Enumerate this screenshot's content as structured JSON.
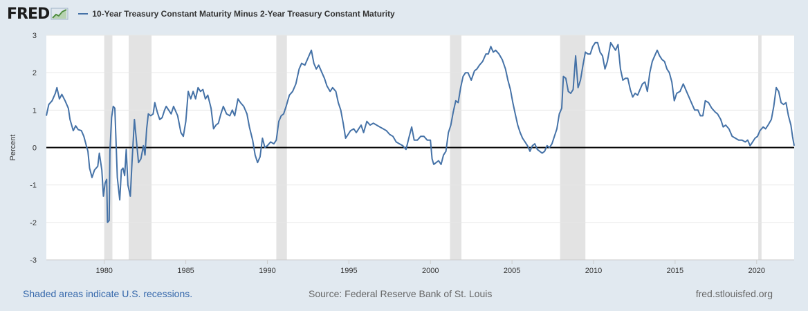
{
  "header": {
    "logo_text": "FRED",
    "logo_icon": "trend-chart-icon"
  },
  "colors": {
    "background": "#e1e9f0",
    "series": "#4572a7",
    "recession": "#e3e3e3",
    "zero_line": "#000000"
  },
  "footer": {
    "recessions_note": "Shaded areas indicate U.S. recessions.",
    "source": "Source: Federal Reserve Bank of St. Louis",
    "site": "fred.stlouisfed.org"
  },
  "chart_data": {
    "type": "line",
    "ylabel": "Percent",
    "xlim": [
      1976.45,
      2022.3
    ],
    "ylim": [
      -3,
      3
    ],
    "yticks": [
      3,
      2,
      1,
      0,
      -1,
      -2,
      -3
    ],
    "xticks": [
      1980,
      1985,
      1990,
      1995,
      2000,
      2005,
      2010,
      2015,
      2020
    ],
    "grid": true,
    "legend_position": "top-left",
    "recessions": [
      [
        1980.0,
        1980.5
      ],
      [
        1981.5,
        1982.9
      ],
      [
        1990.55,
        1991.2
      ],
      [
        2001.2,
        2001.9
      ],
      [
        2007.95,
        2009.5
      ],
      [
        2020.1,
        2020.3
      ]
    ],
    "series": [
      {
        "name": "10-Year Treasury Constant Maturity Minus 2-Year Treasury Constant Maturity",
        "points": [
          [
            1976.45,
            0.85
          ],
          [
            1976.6,
            1.15
          ],
          [
            1976.8,
            1.25
          ],
          [
            1977.0,
            1.45
          ],
          [
            1977.1,
            1.6
          ],
          [
            1977.25,
            1.3
          ],
          [
            1977.4,
            1.42
          ],
          [
            1977.6,
            1.25
          ],
          [
            1977.8,
            1.05
          ],
          [
            1977.9,
            0.75
          ],
          [
            1978.1,
            0.45
          ],
          [
            1978.25,
            0.58
          ],
          [
            1978.4,
            0.48
          ],
          [
            1978.6,
            0.45
          ],
          [
            1978.75,
            0.3
          ],
          [
            1978.9,
            0.05
          ],
          [
            1979.0,
            -0.1
          ],
          [
            1979.1,
            -0.55
          ],
          [
            1979.25,
            -0.8
          ],
          [
            1979.4,
            -0.6
          ],
          [
            1979.6,
            -0.5
          ],
          [
            1979.7,
            -0.15
          ],
          [
            1979.85,
            -0.6
          ],
          [
            1979.95,
            -1.3
          ],
          [
            1980.05,
            -0.95
          ],
          [
            1980.15,
            -0.85
          ],
          [
            1980.2,
            -2.0
          ],
          [
            1980.3,
            -1.95
          ],
          [
            1980.35,
            -0.1
          ],
          [
            1980.45,
            0.8
          ],
          [
            1980.55,
            1.1
          ],
          [
            1980.65,
            1.05
          ],
          [
            1980.8,
            -0.8
          ],
          [
            1980.95,
            -1.4
          ],
          [
            1981.05,
            -0.6
          ],
          [
            1981.15,
            -0.55
          ],
          [
            1981.25,
            -0.75
          ],
          [
            1981.35,
            -0.05
          ],
          [
            1981.45,
            -1.0
          ],
          [
            1981.6,
            -1.3
          ],
          [
            1981.7,
            -0.4
          ],
          [
            1981.85,
            0.75
          ],
          [
            1982.0,
            0.05
          ],
          [
            1982.1,
            -0.4
          ],
          [
            1982.25,
            -0.3
          ],
          [
            1982.4,
            0.05
          ],
          [
            1982.5,
            -0.2
          ],
          [
            1982.6,
            0.5
          ],
          [
            1982.7,
            0.9
          ],
          [
            1982.85,
            0.85
          ],
          [
            1983.0,
            0.9
          ],
          [
            1983.1,
            1.2
          ],
          [
            1983.25,
            0.95
          ],
          [
            1983.4,
            0.75
          ],
          [
            1983.55,
            0.8
          ],
          [
            1983.7,
            1.0
          ],
          [
            1983.8,
            1.1
          ],
          [
            1983.95,
            1.0
          ],
          [
            1984.1,
            0.9
          ],
          [
            1984.25,
            1.1
          ],
          [
            1984.5,
            0.85
          ],
          [
            1984.7,
            0.4
          ],
          [
            1984.85,
            0.3
          ],
          [
            1985.0,
            0.7
          ],
          [
            1985.15,
            1.5
          ],
          [
            1985.3,
            1.3
          ],
          [
            1985.45,
            1.5
          ],
          [
            1985.6,
            1.3
          ],
          [
            1985.75,
            1.6
          ],
          [
            1985.9,
            1.5
          ],
          [
            1986.05,
            1.55
          ],
          [
            1986.2,
            1.3
          ],
          [
            1986.35,
            1.4
          ],
          [
            1986.55,
            1.05
          ],
          [
            1986.7,
            0.5
          ],
          [
            1986.85,
            0.6
          ],
          [
            1987.0,
            0.65
          ],
          [
            1987.15,
            0.9
          ],
          [
            1987.3,
            1.1
          ],
          [
            1987.5,
            0.9
          ],
          [
            1987.7,
            0.85
          ],
          [
            1987.85,
            1.0
          ],
          [
            1988.0,
            0.85
          ],
          [
            1988.2,
            1.3
          ],
          [
            1988.35,
            1.2
          ],
          [
            1988.55,
            1.1
          ],
          [
            1988.75,
            0.9
          ],
          [
            1988.9,
            0.55
          ],
          [
            1989.1,
            0.2
          ],
          [
            1989.25,
            -0.2
          ],
          [
            1989.4,
            -0.4
          ],
          [
            1989.55,
            -0.25
          ],
          [
            1989.7,
            0.25
          ],
          [
            1989.85,
            0.0
          ],
          [
            1990.0,
            0.05
          ],
          [
            1990.2,
            0.15
          ],
          [
            1990.4,
            0.1
          ],
          [
            1990.55,
            0.2
          ],
          [
            1990.7,
            0.7
          ],
          [
            1990.85,
            0.85
          ],
          [
            1991.0,
            0.9
          ],
          [
            1991.15,
            1.1
          ],
          [
            1991.35,
            1.4
          ],
          [
            1991.55,
            1.5
          ],
          [
            1991.75,
            1.7
          ],
          [
            1991.95,
            2.1
          ],
          [
            1992.1,
            2.25
          ],
          [
            1992.3,
            2.2
          ],
          [
            1992.5,
            2.4
          ],
          [
            1992.7,
            2.6
          ],
          [
            1992.85,
            2.25
          ],
          [
            1993.0,
            2.1
          ],
          [
            1993.15,
            2.2
          ],
          [
            1993.35,
            2.0
          ],
          [
            1993.5,
            1.85
          ],
          [
            1993.65,
            1.65
          ],
          [
            1993.85,
            1.5
          ],
          [
            1994.0,
            1.6
          ],
          [
            1994.2,
            1.5
          ],
          [
            1994.35,
            1.2
          ],
          [
            1994.5,
            1.0
          ],
          [
            1994.65,
            0.65
          ],
          [
            1994.8,
            0.25
          ],
          [
            1994.95,
            0.35
          ],
          [
            1995.1,
            0.45
          ],
          [
            1995.3,
            0.5
          ],
          [
            1995.45,
            0.4
          ],
          [
            1995.6,
            0.5
          ],
          [
            1995.75,
            0.6
          ],
          [
            1995.9,
            0.4
          ],
          [
            1996.1,
            0.7
          ],
          [
            1996.3,
            0.6
          ],
          [
            1996.5,
            0.65
          ],
          [
            1996.7,
            0.6
          ],
          [
            1996.9,
            0.55
          ],
          [
            1997.1,
            0.5
          ],
          [
            1997.3,
            0.45
          ],
          [
            1997.5,
            0.35
          ],
          [
            1997.7,
            0.3
          ],
          [
            1997.9,
            0.15
          ],
          [
            1998.1,
            0.1
          ],
          [
            1998.3,
            0.05
          ],
          [
            1998.5,
            -0.05
          ],
          [
            1998.7,
            0.3
          ],
          [
            1998.85,
            0.55
          ],
          [
            1999.0,
            0.2
          ],
          [
            1999.2,
            0.2
          ],
          [
            1999.4,
            0.3
          ],
          [
            1999.6,
            0.3
          ],
          [
            1999.8,
            0.2
          ],
          [
            2000.0,
            0.2
          ],
          [
            2000.1,
            -0.3
          ],
          [
            2000.2,
            -0.45
          ],
          [
            2000.35,
            -0.4
          ],
          [
            2000.5,
            -0.35
          ],
          [
            2000.65,
            -0.45
          ],
          [
            2000.8,
            -0.2
          ],
          [
            2000.95,
            -0.1
          ],
          [
            2001.1,
            0.4
          ],
          [
            2001.25,
            0.6
          ],
          [
            2001.4,
            0.95
          ],
          [
            2001.55,
            1.25
          ],
          [
            2001.7,
            1.2
          ],
          [
            2001.85,
            1.6
          ],
          [
            2002.0,
            1.9
          ],
          [
            2002.15,
            2.0
          ],
          [
            2002.3,
            2.0
          ],
          [
            2002.5,
            1.8
          ],
          [
            2002.7,
            2.05
          ],
          [
            2002.85,
            2.1
          ],
          [
            2003.0,
            2.2
          ],
          [
            2003.2,
            2.3
          ],
          [
            2003.4,
            2.5
          ],
          [
            2003.55,
            2.5
          ],
          [
            2003.7,
            2.7
          ],
          [
            2003.85,
            2.55
          ],
          [
            2004.0,
            2.6
          ],
          [
            2004.2,
            2.5
          ],
          [
            2004.4,
            2.35
          ],
          [
            2004.6,
            2.1
          ],
          [
            2004.75,
            1.8
          ],
          [
            2004.9,
            1.55
          ],
          [
            2005.05,
            1.2
          ],
          [
            2005.2,
            0.9
          ],
          [
            2005.35,
            0.6
          ],
          [
            2005.5,
            0.4
          ],
          [
            2005.65,
            0.25
          ],
          [
            2005.8,
            0.15
          ],
          [
            2005.95,
            0.05
          ],
          [
            2006.1,
            -0.1
          ],
          [
            2006.25,
            0.05
          ],
          [
            2006.4,
            0.1
          ],
          [
            2006.55,
            -0.05
          ],
          [
            2006.7,
            -0.1
          ],
          [
            2006.85,
            -0.15
          ],
          [
            2007.0,
            -0.1
          ],
          [
            2007.15,
            0.05
          ],
          [
            2007.3,
            0.0
          ],
          [
            2007.45,
            0.1
          ],
          [
            2007.6,
            0.3
          ],
          [
            2007.75,
            0.5
          ],
          [
            2007.9,
            0.9
          ],
          [
            2008.05,
            1.05
          ],
          [
            2008.15,
            1.9
          ],
          [
            2008.3,
            1.85
          ],
          [
            2008.45,
            1.5
          ],
          [
            2008.6,
            1.45
          ],
          [
            2008.75,
            1.55
          ],
          [
            2008.9,
            2.45
          ],
          [
            2009.05,
            1.6
          ],
          [
            2009.2,
            1.8
          ],
          [
            2009.35,
            2.2
          ],
          [
            2009.5,
            2.55
          ],
          [
            2009.65,
            2.5
          ],
          [
            2009.8,
            2.5
          ],
          [
            2009.95,
            2.7
          ],
          [
            2010.1,
            2.8
          ],
          [
            2010.25,
            2.8
          ],
          [
            2010.4,
            2.55
          ],
          [
            2010.55,
            2.45
          ],
          [
            2010.7,
            2.1
          ],
          [
            2010.85,
            2.3
          ],
          [
            2011.05,
            2.8
          ],
          [
            2011.2,
            2.7
          ],
          [
            2011.35,
            2.6
          ],
          [
            2011.5,
            2.75
          ],
          [
            2011.65,
            2.1
          ],
          [
            2011.8,
            1.8
          ],
          [
            2011.95,
            1.85
          ],
          [
            2012.1,
            1.85
          ],
          [
            2012.25,
            1.55
          ],
          [
            2012.4,
            1.35
          ],
          [
            2012.55,
            1.45
          ],
          [
            2012.7,
            1.4
          ],
          [
            2012.85,
            1.55
          ],
          [
            2013.0,
            1.7
          ],
          [
            2013.15,
            1.75
          ],
          [
            2013.3,
            1.5
          ],
          [
            2013.45,
            2.0
          ],
          [
            2013.6,
            2.3
          ],
          [
            2013.75,
            2.45
          ],
          [
            2013.9,
            2.6
          ],
          [
            2014.05,
            2.45
          ],
          [
            2014.2,
            2.35
          ],
          [
            2014.35,
            2.3
          ],
          [
            2014.5,
            2.1
          ],
          [
            2014.65,
            2.0
          ],
          [
            2014.8,
            1.75
          ],
          [
            2014.95,
            1.25
          ],
          [
            2015.1,
            1.45
          ],
          [
            2015.3,
            1.5
          ],
          [
            2015.5,
            1.7
          ],
          [
            2015.7,
            1.5
          ],
          [
            2015.9,
            1.3
          ],
          [
            2016.05,
            1.15
          ],
          [
            2016.2,
            1.0
          ],
          [
            2016.4,
            1.0
          ],
          [
            2016.55,
            0.85
          ],
          [
            2016.7,
            0.85
          ],
          [
            2016.85,
            1.25
          ],
          [
            2017.05,
            1.2
          ],
          [
            2017.25,
            1.05
          ],
          [
            2017.45,
            0.95
          ],
          [
            2017.6,
            0.9
          ],
          [
            2017.8,
            0.75
          ],
          [
            2017.95,
            0.55
          ],
          [
            2018.1,
            0.6
          ],
          [
            2018.3,
            0.5
          ],
          [
            2018.5,
            0.3
          ],
          [
            2018.7,
            0.25
          ],
          [
            2018.9,
            0.2
          ],
          [
            2019.1,
            0.2
          ],
          [
            2019.3,
            0.15
          ],
          [
            2019.45,
            0.2
          ],
          [
            2019.6,
            0.05
          ],
          [
            2019.75,
            0.15
          ],
          [
            2019.9,
            0.25
          ],
          [
            2020.05,
            0.3
          ],
          [
            2020.2,
            0.45
          ],
          [
            2020.4,
            0.55
          ],
          [
            2020.55,
            0.5
          ],
          [
            2020.7,
            0.6
          ],
          [
            2020.9,
            0.75
          ],
          [
            2021.05,
            1.1
          ],
          [
            2021.2,
            1.6
          ],
          [
            2021.35,
            1.5
          ],
          [
            2021.5,
            1.2
          ],
          [
            2021.65,
            1.15
          ],
          [
            2021.8,
            1.2
          ],
          [
            2021.95,
            0.85
          ],
          [
            2022.1,
            0.6
          ],
          [
            2022.2,
            0.3
          ],
          [
            2022.3,
            0.05
          ]
        ]
      }
    ]
  }
}
